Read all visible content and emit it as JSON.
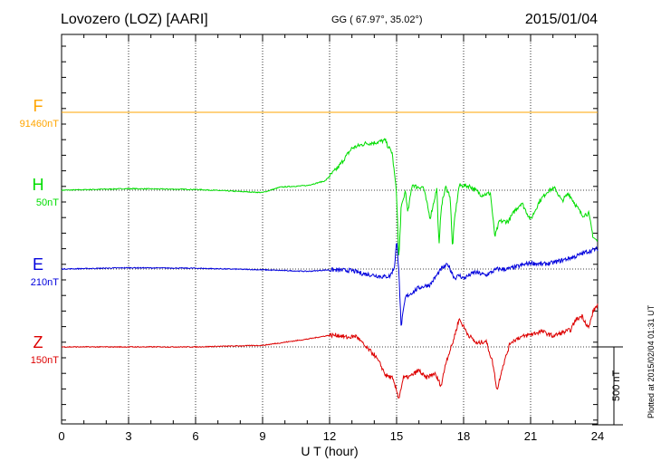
{
  "header": {
    "title": "Lovozero (LOZ)  [AARI]",
    "coords": "GG ( 67.97°,  35.02°)",
    "date": "2015/01/04"
  },
  "plotted_note": "Plotted at 2015/02/04 01:31  UT",
  "scale_bar": {
    "label": "500 nT",
    "value_nT": 500
  },
  "chart_data": {
    "type": "line",
    "title": "Lovozero (LOZ)  [AARI]",
    "xlabel": "U T (hour)",
    "ylabel": "",
    "xlim": [
      0,
      24
    ],
    "xticks": [
      "0",
      "3",
      "6",
      "9",
      "12",
      "15",
      "18",
      "21",
      "24"
    ],
    "grid": true,
    "series": [
      {
        "name": "F",
        "baseline": "91460nT",
        "color": "#ffa500",
        "x": [
          0,
          24
        ],
        "y": [
          0,
          0
        ]
      },
      {
        "name": "H",
        "baseline": "50nT",
        "color": "#00dd00",
        "x": [
          0,
          3,
          6,
          9,
          9.8,
          11,
          11.8,
          12.4,
          13.0,
          13.6,
          14.0,
          14.5,
          14.6,
          14.8,
          15.0,
          15.1,
          15.2,
          15.4,
          15.5,
          15.7,
          15.9,
          16.2,
          16.5,
          16.8,
          16.9,
          17.0,
          17.2,
          17.4,
          17.5,
          17.6,
          17.8,
          18.0,
          18.3,
          18.8,
          19.2,
          19.4,
          19.6,
          20.0,
          20.3,
          20.6,
          21.0,
          21.4,
          21.8,
          22.1,
          22.4,
          22.7,
          23.0,
          23.3,
          23.6,
          23.8,
          24
        ],
        "y": [
          0,
          10,
          5,
          -15,
          20,
          30,
          60,
          150,
          270,
          300,
          305,
          320,
          285,
          240,
          -20,
          -450,
          -120,
          0,
          -150,
          40,
          20,
          20,
          -180,
          10,
          -370,
          -100,
          20,
          -40,
          -370,
          -180,
          30,
          30,
          25,
          -30,
          -20,
          -300,
          -200,
          -200,
          -130,
          -80,
          -190,
          -70,
          0,
          10,
          -70,
          -20,
          -90,
          -160,
          -150,
          -300,
          -330
        ]
      },
      {
        "name": "E",
        "baseline": "210nT",
        "color": "#0000dd",
        "x": [
          0,
          3,
          6,
          9,
          10,
          11,
          11.5,
          12,
          13,
          13.5,
          14,
          14.4,
          14.7,
          14.9,
          15.0,
          15.1,
          15.2,
          15.4,
          15.7,
          16.0,
          16.5,
          17.0,
          17.3,
          17.6,
          17.8,
          18.0,
          18.5,
          19.0,
          19.5,
          20.0,
          20.5,
          21.0,
          21.5,
          22.0,
          22.5,
          23.0,
          23.5,
          24
        ],
        "y": [
          0,
          8,
          5,
          -5,
          -10,
          -15,
          -10,
          -5,
          -10,
          -30,
          -40,
          -50,
          -45,
          10,
          180,
          0,
          -370,
          -180,
          -150,
          -120,
          -100,
          0,
          30,
          -60,
          -40,
          -60,
          -20,
          -40,
          0,
          0,
          20,
          40,
          30,
          40,
          60,
          80,
          110,
          130
        ]
      },
      {
        "name": "Z",
        "baseline": "150nT",
        "color": "#dd0000",
        "x": [
          0,
          3,
          6,
          9,
          10,
          11,
          12,
          12.4,
          12.8,
          13.2,
          13.6,
          14.0,
          14.3,
          14.5,
          14.8,
          15.0,
          15.1,
          15.3,
          15.6,
          16.0,
          16.3,
          16.7,
          17.0,
          17.2,
          17.5,
          17.8,
          18.2,
          18.6,
          19.0,
          19.3,
          19.5,
          19.7,
          20.1,
          20.5,
          21.0,
          21.5,
          22.0,
          22.4,
          22.8,
          23.0,
          23.3,
          23.6,
          23.8,
          24
        ],
        "y": [
          0,
          0,
          0,
          10,
          30,
          50,
          75,
          75,
          60,
          70,
          0,
          -50,
          -120,
          -180,
          -200,
          -280,
          -330,
          -200,
          -190,
          -150,
          -200,
          -170,
          -250,
          -100,
          20,
          180,
          80,
          20,
          40,
          -100,
          -280,
          -150,
          30,
          60,
          80,
          100,
          70,
          90,
          110,
          170,
          200,
          120,
          230,
          270
        ]
      }
    ]
  }
}
